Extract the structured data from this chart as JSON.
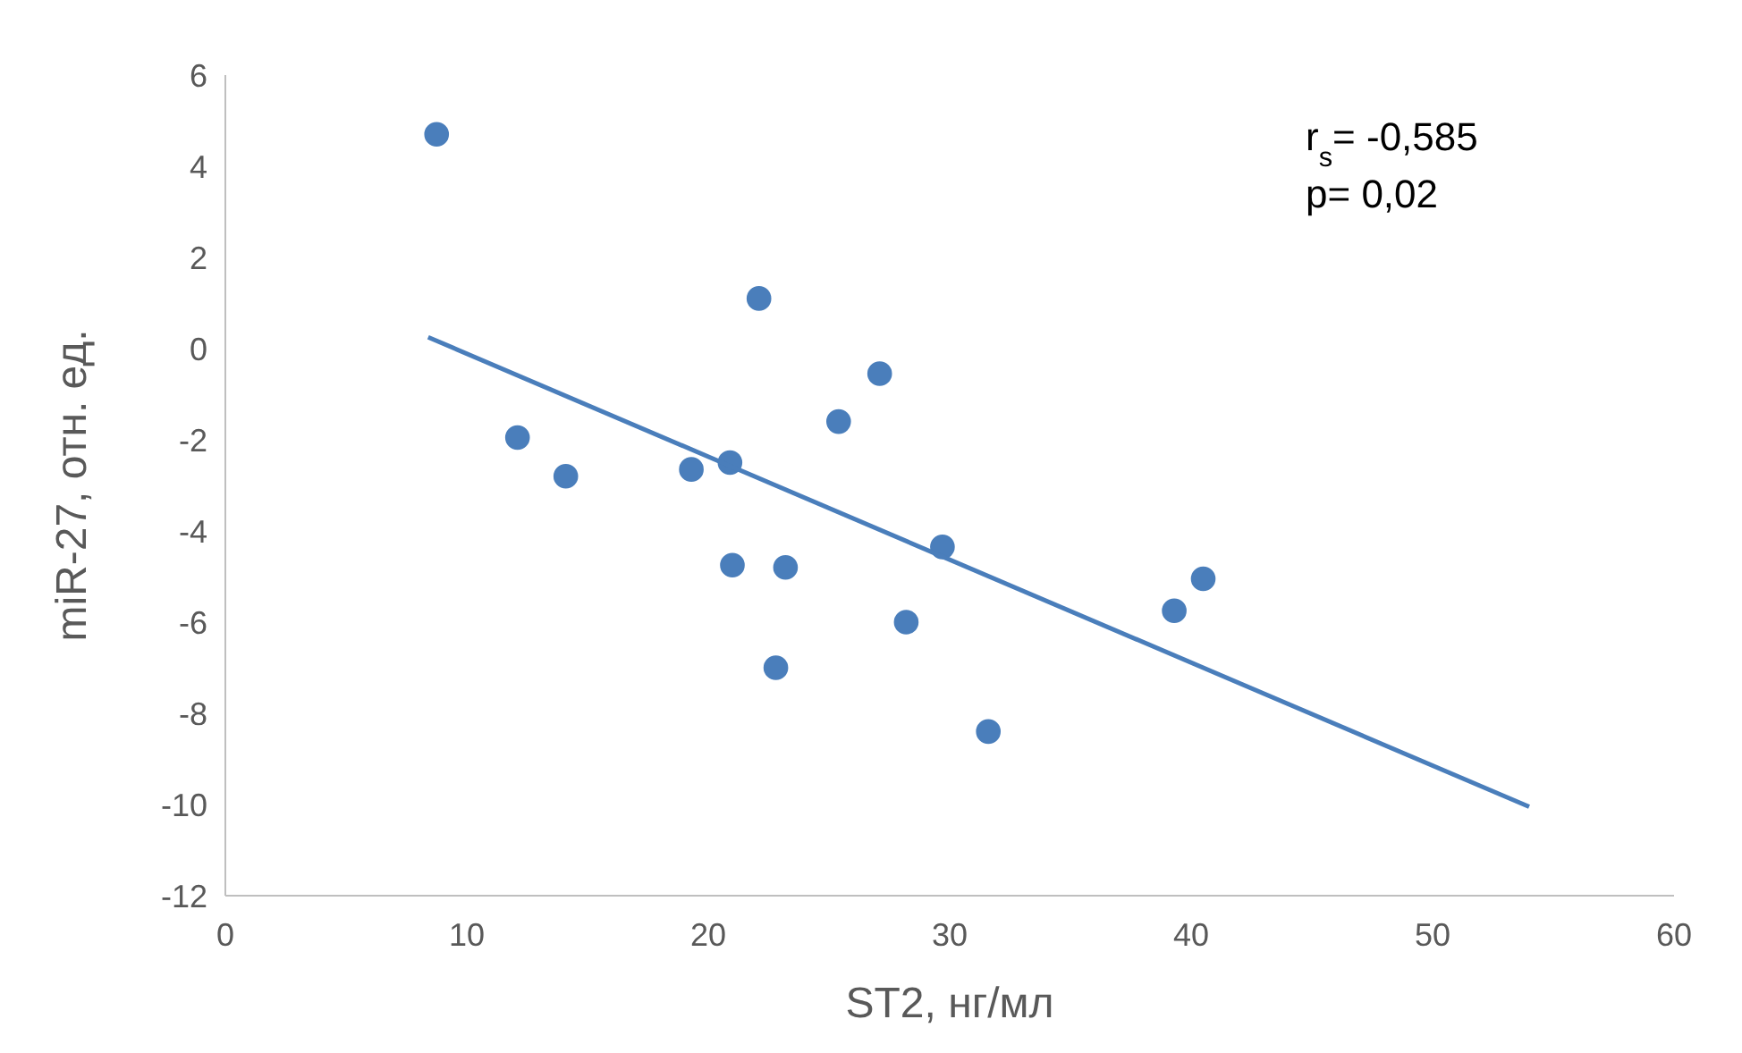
{
  "chart_data": {
    "type": "scatter",
    "xlabel": "ST2, нг/мл",
    "ylabel": "miR-27, отн. ед.",
    "xlim": [
      0,
      60
    ],
    "xticks": [
      0,
      10,
      20,
      30,
      40,
      50,
      60
    ],
    "ylim": [
      -12,
      6
    ],
    "yticks": [
      -12,
      -10,
      -8,
      -6,
      -4,
      -2,
      0,
      2,
      4,
      6
    ],
    "grid": false,
    "annotations": [
      "r$_{s}$= -0,585",
      "p= 0,02"
    ],
    "series": [
      {
        "marker": "circle",
        "color": "#4a7ebb",
        "x": [
          8.75,
          12.1,
          14.1,
          19.3,
          20.9,
          21.0,
          22.1,
          23.2,
          22.8,
          25.4,
          27.1,
          28.2,
          29.7,
          31.6,
          39.3,
          40.5
        ],
        "values": [
          4.7,
          -1.95,
          -2.8,
          -2.65,
          -2.5,
          -4.75,
          1.1,
          -4.8,
          -7.0,
          -1.6,
          -0.55,
          -6.0,
          -4.35,
          -8.4,
          -5.75,
          -5.05
        ]
      },
      {
        "type": "line",
        "color": "#4a7ebb",
        "x": [
          8.4,
          54
        ],
        "values": [
          0.25,
          -10.05
        ]
      }
    ]
  }
}
